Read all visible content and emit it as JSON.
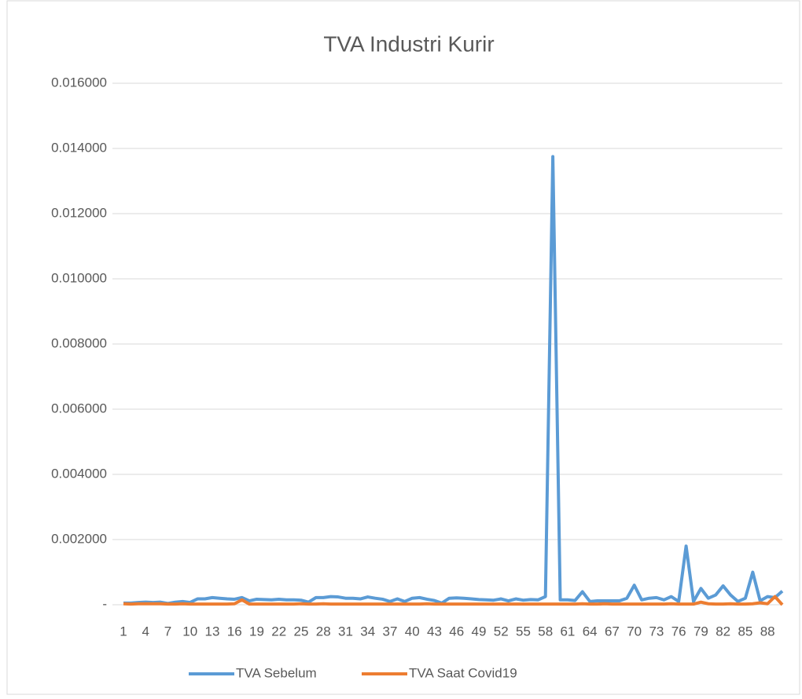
{
  "chart_data": {
    "type": "line",
    "title": "TVA Industri Kurir",
    "categories": [
      "1",
      null,
      null,
      "4",
      null,
      null,
      "7",
      null,
      null,
      "10",
      null,
      null,
      "13",
      null,
      null,
      "16",
      null,
      null,
      "19",
      null,
      null,
      "22",
      null,
      null,
      "25",
      null,
      null,
      "28",
      null,
      null,
      "31",
      null,
      null,
      "34",
      null,
      null,
      "37",
      null,
      null,
      "40",
      null,
      null,
      "43",
      null,
      null,
      "46",
      null,
      null,
      "49",
      null,
      null,
      "52",
      null,
      null,
      "55",
      null,
      null,
      "58",
      null,
      null,
      "61",
      null,
      null,
      "64",
      null,
      null,
      "67",
      null,
      null,
      "70",
      null,
      null,
      "73",
      null,
      null,
      "76",
      null,
      null,
      "79",
      null,
      null,
      "82",
      null,
      null,
      "85",
      null,
      null,
      "88",
      null,
      null
    ],
    "series": [
      {
        "name": "TVA Sebelum",
        "color": "#5b9bd5",
        "values": [
          5e-05,
          5e-05,
          7e-05,
          8e-05,
          7e-05,
          8e-05,
          4e-05,
          8e-05,
          0.0001,
          7e-05,
          0.00018,
          0.00018,
          0.00022,
          0.0002,
          0.00018,
          0.00017,
          0.00022,
          0.00012,
          0.00017,
          0.00016,
          0.00015,
          0.00017,
          0.00015,
          0.00015,
          0.00014,
          8e-05,
          0.00022,
          0.00022,
          0.00025,
          0.00024,
          0.0002,
          0.0002,
          0.00018,
          0.00024,
          0.0002,
          0.00017,
          0.0001,
          0.00018,
          0.0001,
          0.0002,
          0.00022,
          0.00017,
          0.00013,
          5e-05,
          0.0002,
          0.00021,
          0.0002,
          0.00018,
          0.00016,
          0.00015,
          0.00014,
          0.00018,
          0.00012,
          0.00018,
          0.00014,
          0.00016,
          0.00015,
          0.00025,
          0.01375,
          0.00015,
          0.00015,
          0.00013,
          0.0004,
          0.0001,
          0.00012,
          0.00012,
          0.00012,
          0.00012,
          0.0002,
          0.0006,
          0.00015,
          0.0002,
          0.00022,
          0.00015,
          0.00025,
          0.0001,
          0.0018,
          0.0001,
          0.0005,
          0.0002,
          0.0003,
          0.00058,
          0.0003,
          0.0001,
          0.0002,
          0.001,
          0.00012,
          0.00025,
          0.00022,
          0.00042
        ]
      },
      {
        "name": "TVA Saat Covid19",
        "color": "#ed7d31",
        "values": [
          3e-05,
          2e-05,
          3e-05,
          3e-05,
          3e-05,
          3e-05,
          2e-05,
          2e-05,
          3e-05,
          2e-05,
          2e-05,
          2e-05,
          2e-05,
          2e-05,
          2e-05,
          3e-05,
          0.00015,
          2e-05,
          2e-05,
          2e-05,
          2e-05,
          2e-05,
          2e-05,
          2e-05,
          3e-05,
          2e-05,
          2e-05,
          3e-05,
          2e-05,
          2e-05,
          2e-05,
          2e-05,
          2e-05,
          2e-05,
          2e-05,
          2e-05,
          2e-05,
          2e-05,
          2e-05,
          2e-05,
          2e-05,
          3e-05,
          2e-05,
          2e-05,
          2e-05,
          2e-05,
          2e-05,
          2e-05,
          2e-05,
          2e-05,
          2e-05,
          2e-05,
          2e-05,
          2e-05,
          2e-05,
          2e-05,
          2e-05,
          2e-05,
          2e-05,
          2e-05,
          2e-05,
          2e-05,
          3e-05,
          2e-05,
          2e-05,
          3e-05,
          2e-05,
          2e-05,
          2e-05,
          2e-05,
          2e-05,
          2e-05,
          2e-05,
          2e-05,
          3e-05,
          2e-05,
          2e-05,
          2e-05,
          8e-05,
          3e-05,
          2e-05,
          2e-05,
          3e-05,
          2e-05,
          2e-05,
          3e-05,
          6e-05,
          3e-05,
          0.00025,
          0
        ]
      }
    ],
    "ylim": [
      0,
      0.016
    ],
    "yticks": [
      {
        "value": 0,
        "label": "-"
      },
      {
        "value": 0.002,
        "label": "0.002000"
      },
      {
        "value": 0.004,
        "label": "0.004000"
      },
      {
        "value": 0.006,
        "label": "0.006000"
      },
      {
        "value": 0.008,
        "label": "0.008000"
      },
      {
        "value": 0.01,
        "label": "0.010000"
      },
      {
        "value": 0.012,
        "label": "0.012000"
      },
      {
        "value": 0.014,
        "label": "0.014000"
      },
      {
        "value": 0.016,
        "label": "0.016000"
      }
    ],
    "grid": true,
    "legend": "bottom"
  }
}
